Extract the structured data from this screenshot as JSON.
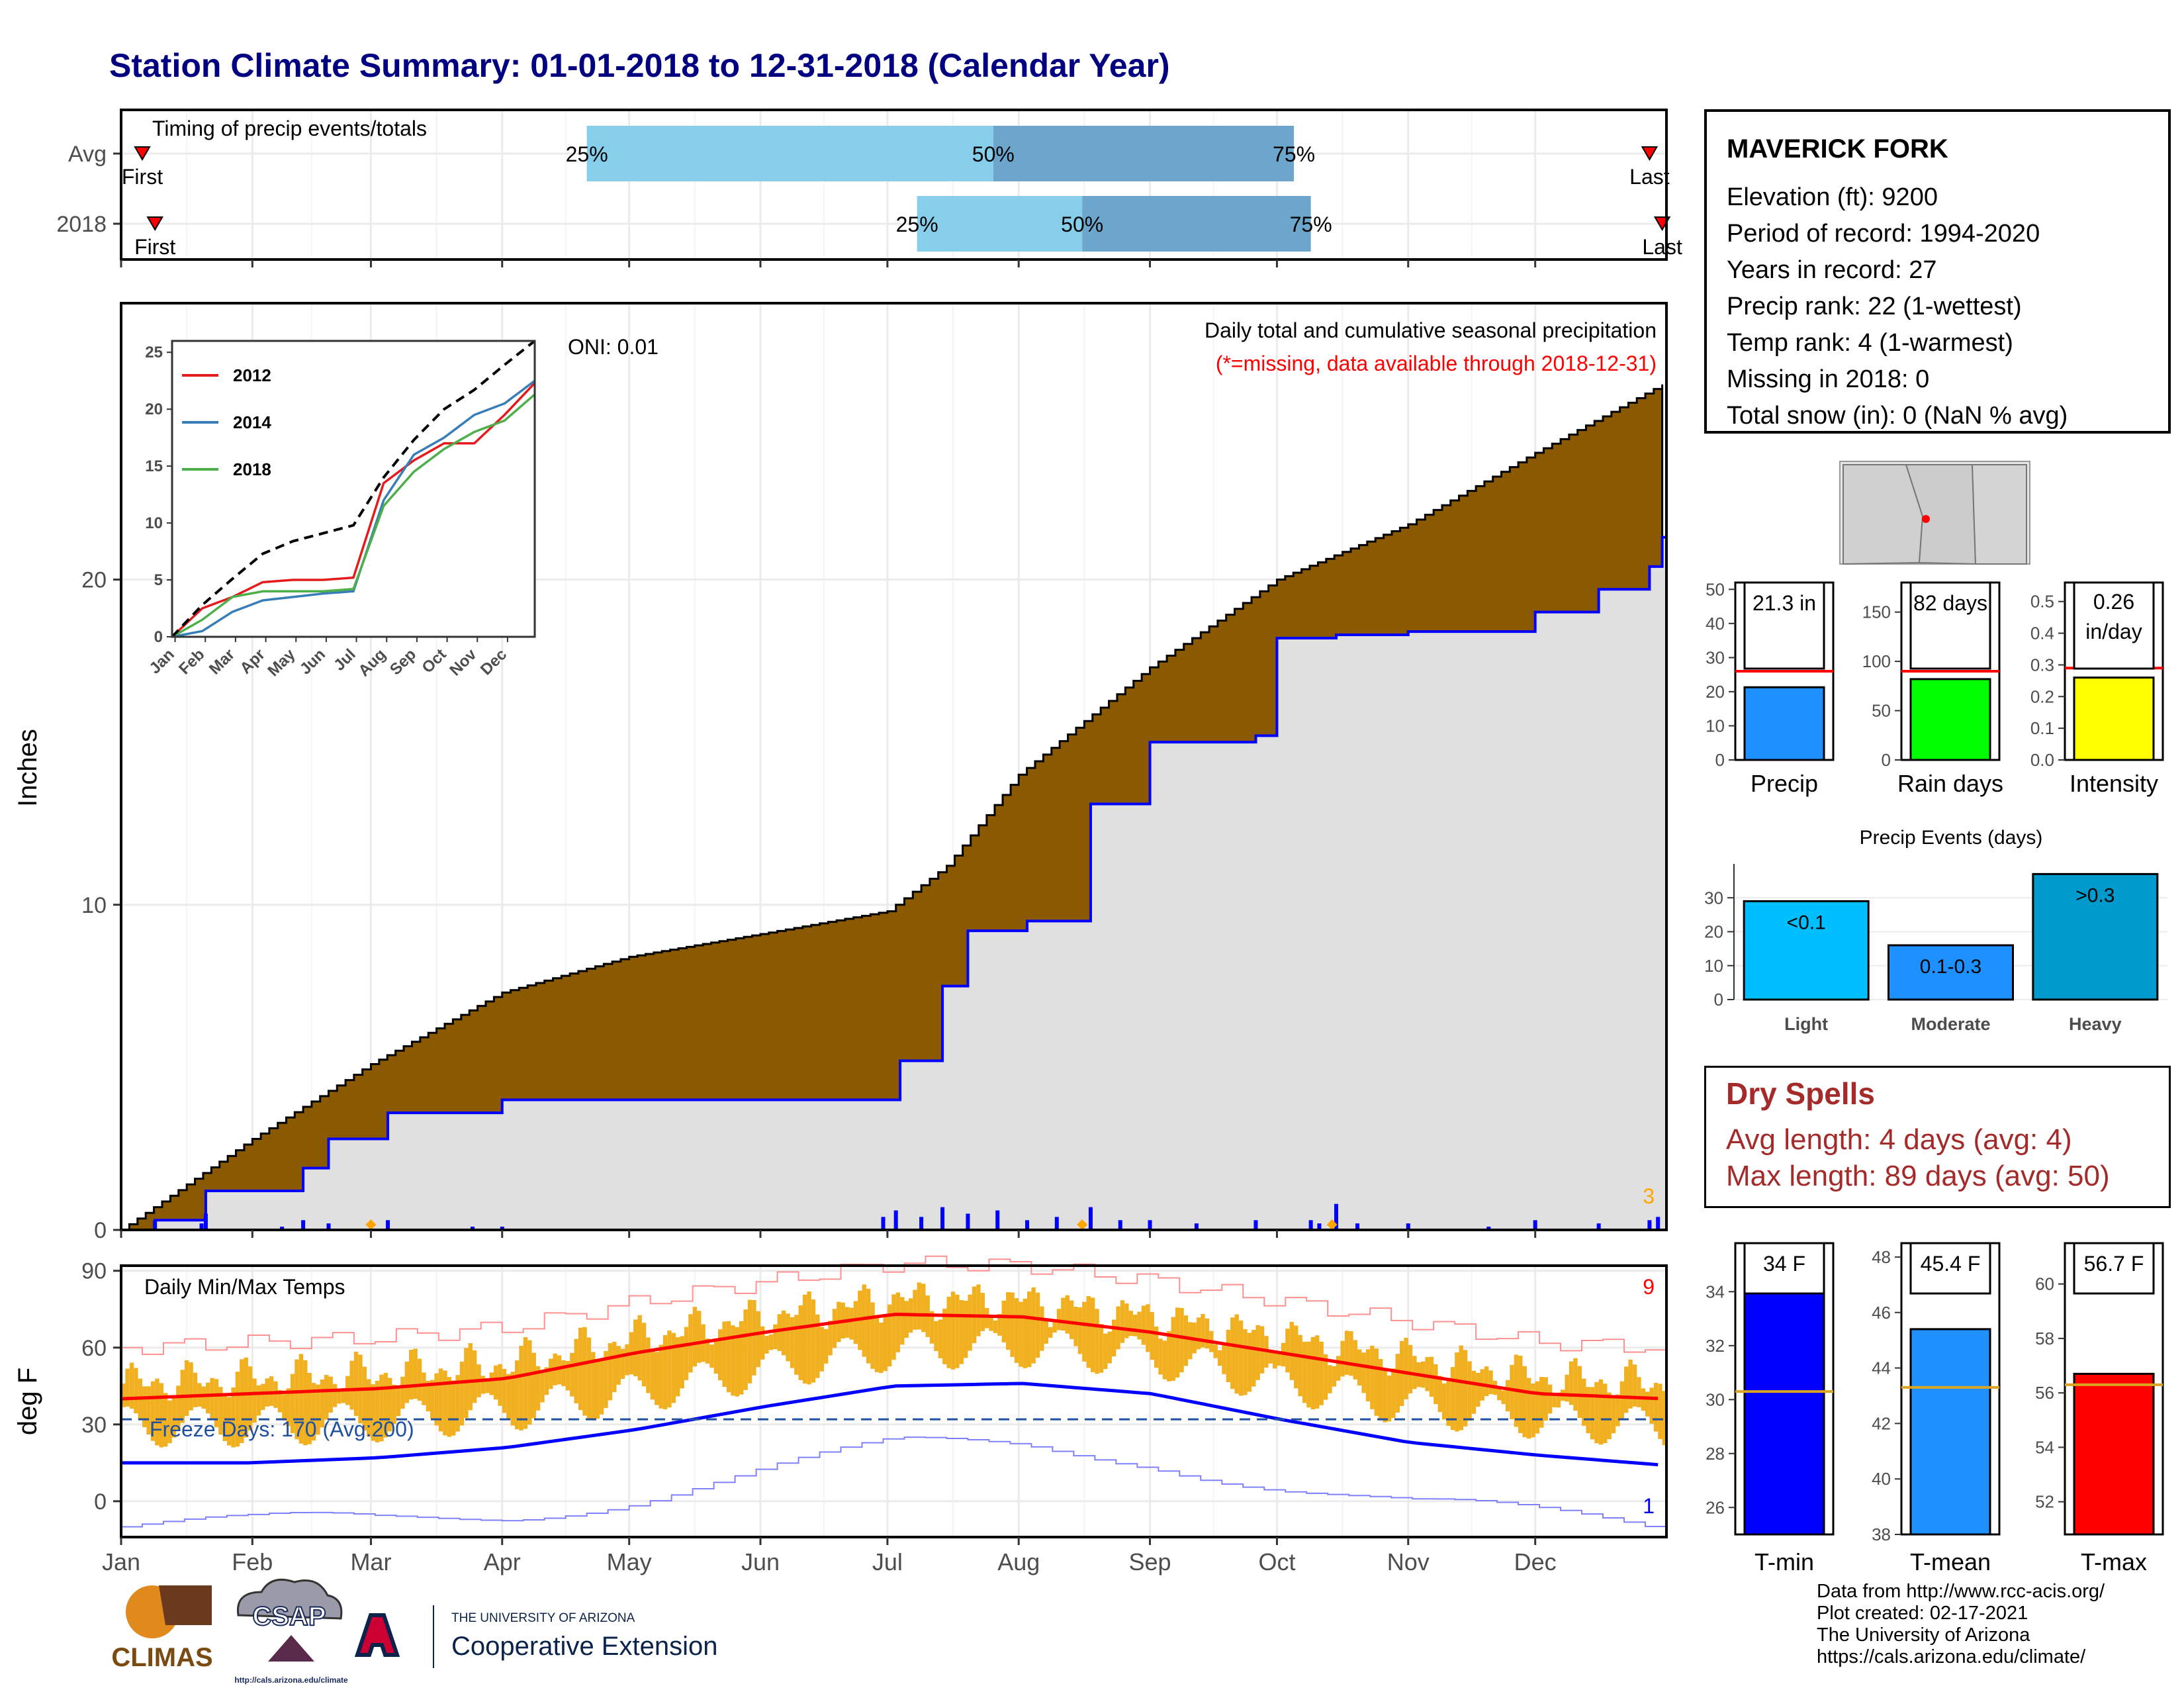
{
  "title": "Station Climate Summary: 01-01-2018 to 12-31-2018 (Calendar Year)",
  "station": {
    "name": "MAVERICK FORK",
    "elevation_line": "Elevation (ft): 9200",
    "period_line": "Period of record: 1994-2020",
    "years_line": "Years in record: 27",
    "precip_rank_line": "Precip rank: 22 (1-wettest)",
    "temp_rank_line": "Temp rank: 4 (1-warmest)",
    "missing_line": "Missing in 2018: 0",
    "snow_line": "Total snow (in): 0 (NaN % avg)"
  },
  "dry_spells": {
    "title": "Dry Spells",
    "avg_line": "Avg length: 4 days (avg: 4)",
    "max_line": "Max length: 89 days (avg: 50)"
  },
  "footer": {
    "line1": "Data from http://www.rcc-acis.org/",
    "line2": "Plot created: 02-17-2021",
    "line3": "The University of Arizona",
    "line4": "https://cals.arizona.edu/climate/"
  },
  "logos": {
    "climas": "CLIMAS",
    "csap": "CSAP",
    "csap_url": "http://cals.arizona.edu/climate",
    "ua_small": "THE UNIVERSITY OF ARIZONA",
    "ua_big": "Cooperative Extension"
  },
  "colors": {
    "title": "#000080",
    "cumulative_avg_fill": "#8B5A00",
    "cumulative_2018_fill": "#E0E0E0",
    "cumulative_2018_line": "#0000FF",
    "temp_bars": "#F0B020",
    "tmax_avg": "#FF0000",
    "tmin_avg": "#0000FF",
    "dry_spells": "#A52A2A",
    "timing_light": "#87CEEB",
    "timing_dark": "#6CA6CD"
  },
  "chart_data": [
    {
      "id": "timing",
      "type": "bar",
      "title": "Timing of precip events/totals",
      "rows": [
        {
          "label": "Avg",
          "first_label": "First",
          "last_label": "Last",
          "first": "2018-01-06",
          "last": "2018-12-28",
          "q25": "2018-04-21",
          "q50": "2018-07-26",
          "q75": "2018-10-05",
          "q25_label": "25%",
          "q50_label": "50%",
          "q75_label": "75%"
        },
        {
          "label": "2018",
          "first_label": "First",
          "last_label": "Last",
          "first": "2018-01-09",
          "last": "2018-12-31",
          "q25": "2018-07-08",
          "q50": "2018-08-16",
          "q75": "2018-10-09",
          "q25_label": "25%",
          "q50_label": "50%",
          "q75_label": "75%"
        }
      ]
    },
    {
      "id": "precip",
      "type": "area",
      "title": "Daily total and cumulative seasonal precipitation",
      "subtitle": "(*=missing, data available through 2018-12-31)",
      "ylabel": "Inches",
      "ylim": [
        0,
        28.5
      ],
      "yticks": [
        0,
        10,
        20
      ],
      "oni_label": "ONI: 0.01",
      "max_daily_label": "3",
      "avg_cumulative": {
        "x": [
          "2018-01-01",
          "2018-02-01",
          "2018-03-01",
          "2018-04-01",
          "2018-05-01",
          "2018-06-01",
          "2018-07-01",
          "2018-07-15",
          "2018-08-01",
          "2018-09-01",
          "2018-10-01",
          "2018-11-01",
          "2018-12-01",
          "2018-12-31"
        ],
        "y": [
          0,
          2.8,
          5.1,
          7.3,
          8.4,
          9.1,
          9.8,
          11.2,
          14.0,
          17.3,
          20.0,
          21.7,
          23.9,
          26.0
        ]
      },
      "cum_2018": {
        "x": [
          "2018-01-01",
          "2018-01-09",
          "2018-01-21",
          "2018-02-10",
          "2018-02-13",
          "2018-02-19",
          "2018-03-05",
          "2018-04-01",
          "2018-06-30",
          "2018-07-04",
          "2018-07-14",
          "2018-07-20",
          "2018-08-03",
          "2018-08-18",
          "2018-09-01",
          "2018-09-26",
          "2018-10-01",
          "2018-10-15",
          "2018-11-01",
          "2018-12-01",
          "2018-12-16",
          "2018-12-28",
          "2018-12-31"
        ],
        "y": [
          0,
          0.3,
          1.2,
          1.2,
          1.9,
          2.8,
          3.6,
          4.0,
          4.0,
          5.2,
          7.5,
          9.2,
          9.5,
          13.1,
          15.0,
          15.2,
          18.2,
          18.3,
          18.4,
          19.0,
          19.7,
          20.4,
          21.3
        ]
      },
      "daily_events": {
        "x": [
          "2018-01-09",
          "2018-01-20",
          "2018-01-21",
          "2018-02-08",
          "2018-02-13",
          "2018-02-19",
          "2018-03-05",
          "2018-03-25",
          "2018-04-01",
          "2018-06-30",
          "2018-07-03",
          "2018-07-09",
          "2018-07-14",
          "2018-07-20",
          "2018-07-27",
          "2018-08-03",
          "2018-08-10",
          "2018-08-18",
          "2018-08-25",
          "2018-09-01",
          "2018-09-12",
          "2018-09-26",
          "2018-10-09",
          "2018-10-11",
          "2018-10-15",
          "2018-10-20",
          "2018-11-01",
          "2018-11-20",
          "2018-12-01",
          "2018-12-16",
          "2018-12-28",
          "2018-12-30"
        ],
        "y": [
          0.3,
          0.2,
          0.5,
          0.1,
          0.3,
          0.2,
          0.3,
          0.1,
          0.1,
          0.4,
          0.6,
          0.4,
          0.7,
          0.5,
          0.6,
          0.3,
          0.4,
          0.7,
          0.3,
          0.3,
          0.2,
          0.3,
          0.3,
          0.2,
          0.8,
          0.2,
          0.2,
          0.1,
          0.3,
          0.2,
          0.3,
          0.4
        ]
      },
      "missing_markers": [
        "2018-03-01",
        "2018-08-16",
        "2018-10-14"
      ],
      "xticks": [
        "Jan",
        "Feb",
        "Mar",
        "Apr",
        "May",
        "Jun",
        "Jul",
        "Aug",
        "Sep",
        "Oct",
        "Nov",
        "Dec"
      ]
    },
    {
      "id": "inset",
      "type": "line",
      "ylim": [
        0,
        26
      ],
      "yticks": [
        0,
        5,
        10,
        15,
        20,
        25
      ],
      "xticks": [
        "Jan",
        "Feb",
        "Mar",
        "Apr",
        "May",
        "Jun",
        "Jul",
        "Aug",
        "Sep",
        "Oct",
        "Nov",
        "Dec"
      ],
      "series": [
        {
          "name": "2012",
          "color": "#E41A1C",
          "months": [
            0,
            1,
            2,
            3,
            4,
            5,
            6,
            7,
            8,
            9,
            10,
            11,
            12
          ],
          "values": [
            0,
            2.5,
            3.5,
            4.8,
            5.0,
            5.0,
            5.2,
            13.5,
            15.5,
            17.0,
            17.0,
            19.5,
            22.3
          ]
        },
        {
          "name": "2014",
          "color": "#377EB8",
          "months": [
            0,
            1,
            2,
            3,
            4,
            5,
            6,
            7,
            8,
            9,
            10,
            11,
            12
          ],
          "values": [
            0,
            0.5,
            2.2,
            3.2,
            3.5,
            3.8,
            4.0,
            12.0,
            16.0,
            17.5,
            19.5,
            20.5,
            22.5
          ]
        },
        {
          "name": "2018",
          "color": "#4DAF4A",
          "months": [
            0,
            1,
            2,
            3,
            4,
            5,
            6,
            7,
            8,
            9,
            10,
            11,
            12
          ],
          "values": [
            0,
            1.5,
            3.5,
            4.0,
            4.0,
            4.0,
            4.2,
            11.5,
            14.5,
            16.5,
            18.0,
            19.0,
            21.3
          ]
        },
        {
          "name": "",
          "color": "#000000",
          "dashed": true,
          "months": [
            0,
            1,
            2,
            3,
            4,
            5,
            6,
            7,
            8,
            9,
            10,
            11,
            12
          ],
          "values": [
            0,
            2.8,
            5.1,
            7.3,
            8.4,
            9.1,
            9.8,
            14.0,
            17.3,
            20.0,
            21.7,
            23.9,
            26.0
          ]
        }
      ]
    },
    {
      "id": "temps",
      "type": "bar",
      "title": "Daily Min/Max Temps",
      "ylabel": "deg F",
      "ylim": [
        -14,
        92
      ],
      "yticks": [
        0,
        30,
        60,
        90
      ],
      "freeze_label": "Freeze Days: 170 (Avg:200)",
      "freeze_line": 32,
      "max_record_label": "9",
      "min_record_label": "1",
      "avg_tmax": {
        "months": [
          0,
          1,
          2,
          3,
          4,
          5,
          6,
          7,
          8,
          9,
          10,
          11,
          12
        ],
        "values": [
          40,
          42,
          44,
          48,
          58,
          66,
          73,
          72,
          66,
          58,
          50,
          42,
          40
        ]
      },
      "avg_tmin": {
        "months": [
          0,
          1,
          2,
          3,
          4,
          5,
          6,
          7,
          8,
          9,
          10,
          11,
          12
        ],
        "values": [
          15,
          15,
          17,
          21,
          28,
          37,
          45,
          46,
          42,
          32,
          23,
          18,
          14
        ]
      },
      "xticks": [
        "Jan",
        "Feb",
        "Mar",
        "Apr",
        "May",
        "Jun",
        "Jul",
        "Aug",
        "Sep",
        "Oct",
        "Nov",
        "Dec"
      ]
    },
    {
      "id": "summary_bars",
      "type": "bar",
      "panels": [
        {
          "label": "Precip",
          "value": 21.3,
          "value_label": "21.3 in",
          "avg": 26,
          "ylim": [
            0,
            52
          ],
          "yticks": [
            0,
            10,
            20,
            30,
            40,
            50
          ],
          "color": "#1E90FF"
        },
        {
          "label": "Rain days",
          "value": 82,
          "value_label": "82 days",
          "avg": 90,
          "ylim": [
            0,
            180
          ],
          "yticks": [
            0,
            50,
            100,
            150
          ],
          "color": "#00FF00"
        },
        {
          "label": "Intensity",
          "value": 0.26,
          "value_label_line1": "0.26",
          "value_label_line2": "in/day",
          "avg": 0.29,
          "ylim": [
            0,
            0.56
          ],
          "yticks": [
            "0.0",
            "0.1",
            "0.2",
            "0.3",
            "0.4",
            "0.5"
          ],
          "color": "#FFFF00"
        }
      ]
    },
    {
      "id": "events",
      "type": "bar",
      "title": "Precip Events (days)",
      "categories": [
        "Light",
        "Moderate",
        "Heavy"
      ],
      "bar_labels": [
        "<0.1",
        "0.1-0.3",
        ">0.3"
      ],
      "values": [
        29,
        16,
        37
      ],
      "ylim": [
        0,
        40
      ],
      "yticks": [
        0,
        10,
        20,
        30
      ],
      "colors": [
        "#00BFFF",
        "#1E90FF",
        "#009ACD"
      ]
    },
    {
      "id": "temp_summary",
      "type": "bar",
      "panels": [
        {
          "label": "T-min",
          "value": 34,
          "value_label": "34 F",
          "avg": 30.3,
          "ylim": [
            25,
            35.8
          ],
          "yticks": [
            26,
            28,
            30,
            32,
            34
          ],
          "color": "#0000FF"
        },
        {
          "label": "T-mean",
          "value": 45.4,
          "value_label": "45.4 F",
          "avg": 43.3,
          "ylim": [
            38,
            48.5
          ],
          "yticks": [
            38,
            40,
            42,
            44,
            46,
            48
          ],
          "color": "#1E90FF"
        },
        {
          "label": "T-max",
          "value": 56.7,
          "value_label": "56.7 F",
          "avg": 56.3,
          "ylim": [
            50.8,
            61.5
          ],
          "yticks": [
            52,
            54,
            56,
            58,
            60
          ],
          "color": "#FF0000"
        }
      ]
    }
  ]
}
